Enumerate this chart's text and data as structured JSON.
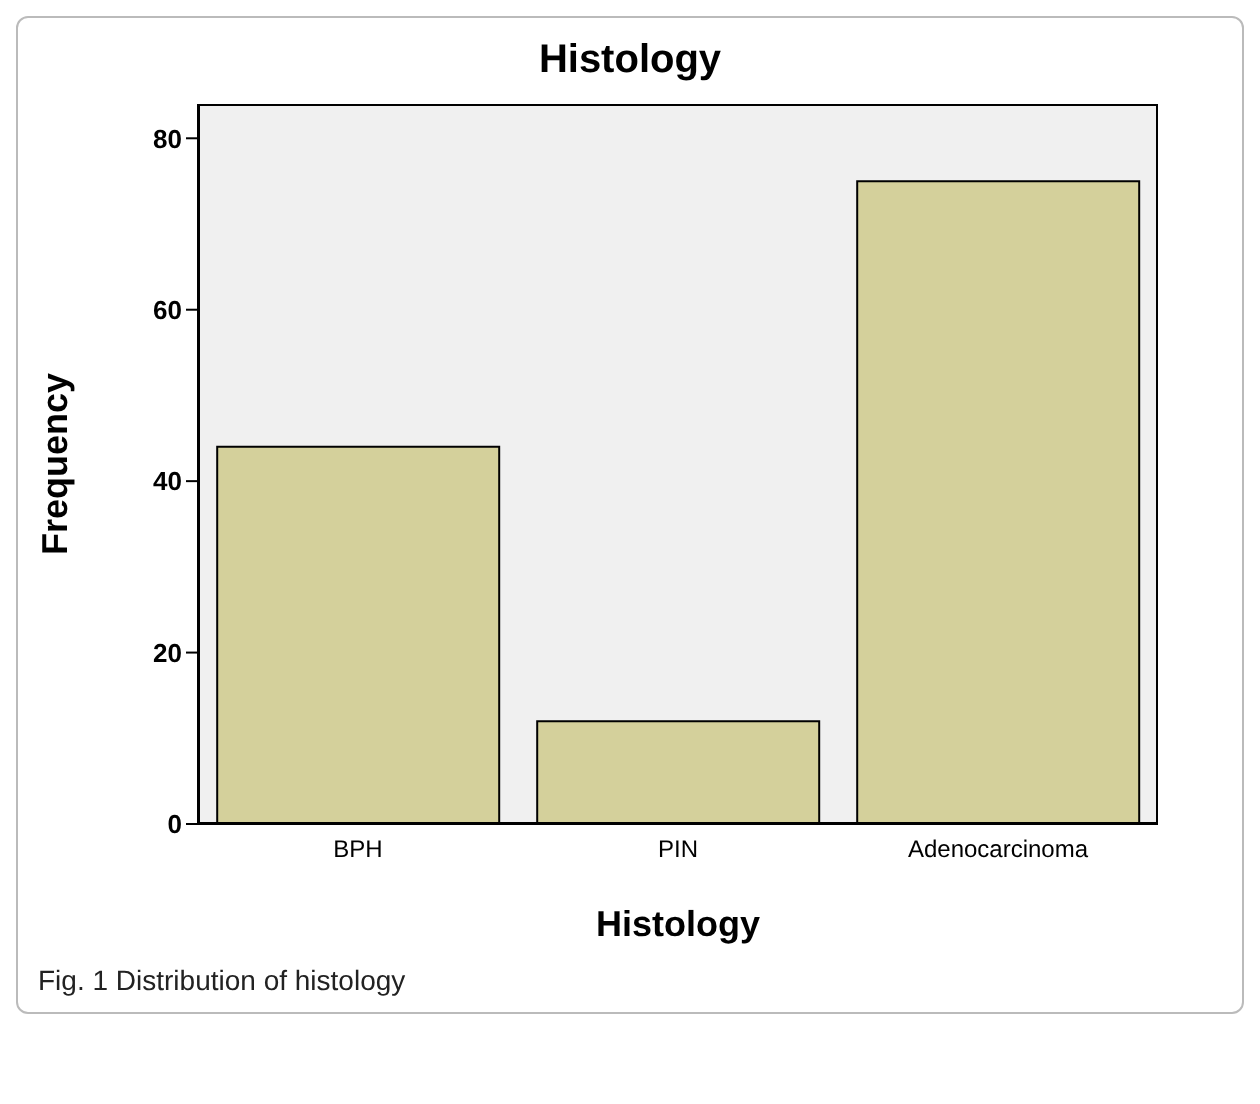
{
  "chart_data": {
    "type": "bar",
    "title": "Histology",
    "xlabel": "Histology",
    "ylabel": "Frequency",
    "categories": [
      "BPH",
      "PIN",
      "Adenocarcinoma"
    ],
    "values": [
      44,
      12,
      75
    ],
    "color": "#d4d09b",
    "ylim": [
      0,
      84
    ],
    "yticks": [
      0,
      20,
      40,
      60,
      80
    ],
    "legend": false,
    "annotations": [
      "Fig. 1  Distribution of histology"
    ]
  }
}
